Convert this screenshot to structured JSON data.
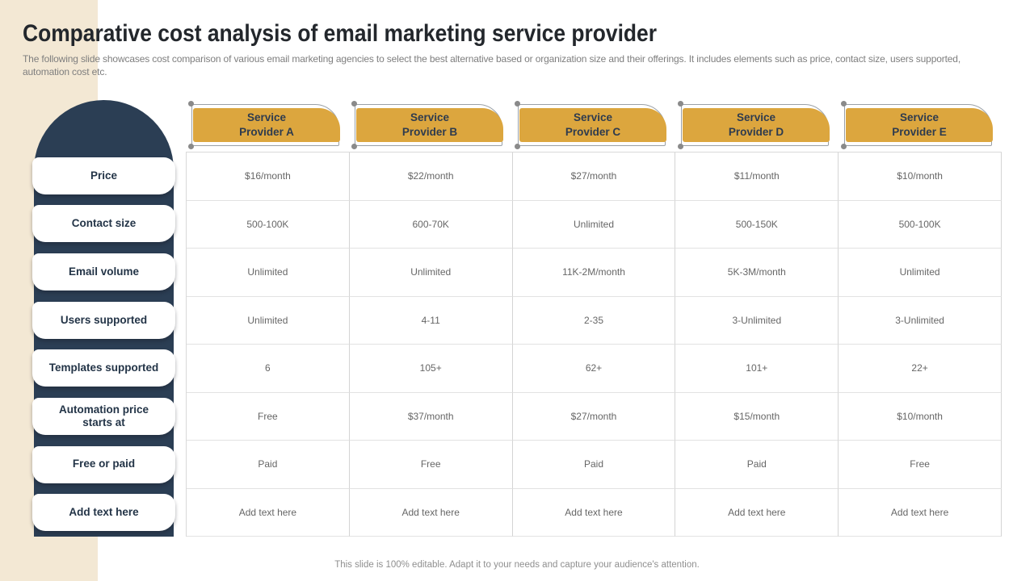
{
  "slide": {
    "title": "Comparative cost analysis of email marketing service provider",
    "subtitle": "The following slide showcases cost comparison of various email marketing agencies to select the best alternative based or organization size and their offerings. It includes elements such as price, contact size, users supported, automation cost etc.",
    "footer": "This slide is 100% editable. Adapt it to your needs and capture your audience's attention."
  },
  "colors": {
    "accent_gold": "#DCA63E",
    "navy": "#2B3E54",
    "cream": "#F3E8D4",
    "grid_line": "#D9D9D9",
    "cell_text": "#666666"
  },
  "providers": [
    {
      "line1": "Service",
      "line2": "Provider A"
    },
    {
      "line1": "Service",
      "line2": "Provider B"
    },
    {
      "line1": "Service",
      "line2": "Provider C"
    },
    {
      "line1": "Service",
      "line2": "Provider D"
    },
    {
      "line1": "Service",
      "line2": "Provider E"
    }
  ],
  "rows": [
    {
      "label": "Price",
      "values": [
        "$16/month",
        "$22/month",
        "$27/month",
        "$11/month",
        "$10/month"
      ]
    },
    {
      "label": "Contact size",
      "values": [
        "500-100K",
        "600-70K",
        "Unlimited",
        "500-150K",
        "500-100K"
      ]
    },
    {
      "label": "Email volume",
      "values": [
        "Unlimited",
        "Unlimited",
        "11K-2M/month",
        "5K-3M/month",
        "Unlimited"
      ]
    },
    {
      "label": "Users supported",
      "values": [
        "Unlimited",
        "4-11",
        "2-35",
        "3-Unlimited",
        "3-Unlimited"
      ]
    },
    {
      "label": "Templates supported",
      "values": [
        "6",
        "105+",
        "62+",
        "101+",
        "22+"
      ]
    },
    {
      "label": "Automation price starts at",
      "values": [
        "Free",
        "$37/month",
        "$27/month",
        "$15/month",
        "$10/month"
      ]
    },
    {
      "label": "Free or paid",
      "values": [
        "Paid",
        "Free",
        "Paid",
        "Paid",
        "Free"
      ]
    },
    {
      "label": "Add text here",
      "values": [
        "Add text here",
        "Add text here",
        "Add text here",
        "Add text here",
        "Add text here"
      ]
    }
  ]
}
